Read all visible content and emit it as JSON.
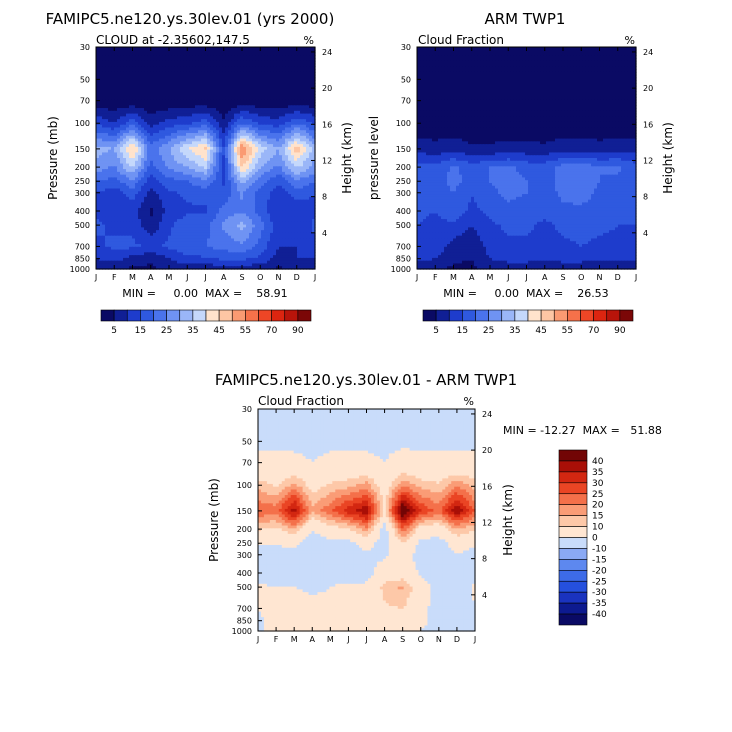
{
  "page": {
    "title_top_left": "FAMIPC5.ne120.ys.30lev.01 (yrs 2000)",
    "title_top_right": "ARM TWP1",
    "title_bottom": "FAMIPC5.ne120.ys.30lev.01 - ARM TWP1"
  },
  "palette": {
    "positive_levels": [
      5,
      10,
      15,
      20,
      25,
      30,
      35,
      40,
      45,
      50,
      55,
      60,
      70,
      80,
      90,
      100
    ],
    "positive_colors": [
      "#0a0a64",
      "#101f95",
      "#1e3ccc",
      "#2f59df",
      "#4a73ec",
      "#6f93f3",
      "#9ab6f8",
      "#c5d8fb",
      "#ffe3cc",
      "#fdc6a4",
      "#fa9a72",
      "#f6714a",
      "#ee4626",
      "#dc2510",
      "#b8140a",
      "#7b0707"
    ],
    "positive_bar_labels": [
      "5",
      "15",
      "25",
      "35",
      "45",
      "55",
      "70",
      "90"
    ],
    "diff_levels": [
      -40,
      -35,
      -30,
      -25,
      -20,
      -15,
      -10,
      0,
      10,
      15,
      20,
      25,
      30,
      35,
      40
    ],
    "diff_colors": [
      "#0a0a64",
      "#0d1a8f",
      "#1a33bf",
      "#2550de",
      "#3d6be8",
      "#5d88ef",
      "#8aa9f4",
      "#c9dcfa",
      "#ffe6d2",
      "#fdc8a8",
      "#fa9c76",
      "#f4704a",
      "#ea4524",
      "#d32711",
      "#a90f07",
      "#720505"
    ],
    "diff_bar_labels": [
      "40",
      "35",
      "30",
      "25",
      "20",
      "15",
      "10",
      "0",
      "-10",
      "-15",
      "-20",
      "-25",
      "-30",
      "-35",
      "-40"
    ]
  },
  "chart_data": [
    {
      "id": "model",
      "type": "contour",
      "title": "FAMIPC5.ne120.ys.30lev.01 (yrs 2000)",
      "subtitle_left": "CLOUD at -2.35602,147.5",
      "subtitle_right": "%",
      "ylabel": "Pressure (mb)",
      "y2label": "Height (km)",
      "xticks": [
        "J",
        "F",
        "M",
        "A",
        "M",
        "J",
        "J",
        "A",
        "S",
        "O",
        "N",
        "D",
        "J"
      ],
      "yticks": [
        "30",
        "50",
        "70",
        "100",
        "150",
        "200",
        "250",
        "300",
        "400",
        "500",
        "700",
        "850",
        "1000"
      ],
      "y2ticks": [
        "24",
        "20",
        "16",
        "12",
        "8",
        "4"
      ],
      "min_max_text": "MIN =     0.00  MAX =    58.91",
      "min": 0.0,
      "max": 58.91,
      "levels_mb": [
        30,
        50,
        70,
        100,
        150,
        200,
        250,
        300,
        400,
        500,
        700,
        850,
        1000
      ],
      "months": [
        "J",
        "F",
        "M",
        "A",
        "M",
        "J",
        "J",
        "A",
        "S",
        "O",
        "N",
        "D",
        "J"
      ],
      "values": [
        [
          0,
          0,
          0,
          0,
          0,
          0,
          0,
          0,
          0,
          0,
          0,
          0,
          0
        ],
        [
          0,
          0,
          0,
          0,
          0,
          0,
          0,
          0,
          0,
          0,
          0,
          0,
          0
        ],
        [
          1,
          1,
          1,
          0,
          1,
          1,
          1,
          0,
          2,
          1,
          1,
          1,
          1
        ],
        [
          14,
          10,
          18,
          8,
          12,
          14,
          18,
          6,
          20,
          14,
          12,
          20,
          14
        ],
        [
          32,
          30,
          47,
          22,
          30,
          40,
          46,
          15,
          56,
          38,
          30,
          48,
          32
        ],
        [
          28,
          24,
          36,
          18,
          26,
          30,
          36,
          14,
          46,
          30,
          24,
          36,
          28
        ],
        [
          20,
          18,
          24,
          12,
          18,
          20,
          24,
          14,
          32,
          22,
          16,
          24,
          20
        ],
        [
          15,
          12,
          18,
          8,
          14,
          16,
          18,
          16,
          26,
          18,
          12,
          18,
          15
        ],
        [
          14,
          10,
          12,
          4,
          12,
          14,
          14,
          22,
          24,
          18,
          10,
          10,
          14
        ],
        [
          16,
          14,
          14,
          6,
          14,
          18,
          18,
          26,
          32,
          22,
          12,
          12,
          16
        ],
        [
          14,
          16,
          16,
          14,
          16,
          18,
          20,
          22,
          24,
          18,
          10,
          10,
          14
        ],
        [
          10,
          12,
          8,
          6,
          10,
          14,
          14,
          16,
          16,
          14,
          8,
          10,
          10
        ],
        [
          6,
          6,
          4,
          4,
          6,
          6,
          6,
          8,
          8,
          6,
          4,
          6,
          6
        ]
      ]
    },
    {
      "id": "obs",
      "type": "contour",
      "title": "ARM TWP1",
      "subtitle_left": "Cloud Fraction",
      "subtitle_right": "%",
      "ylabel": "pressure level",
      "y2label": "Height (km)",
      "xticks": [
        "J",
        "F",
        "M",
        "A",
        "M",
        "J",
        "J",
        "A",
        "S",
        "O",
        "N",
        "D",
        "J"
      ],
      "yticks": [
        "30",
        "50",
        "70",
        "100",
        "150",
        "200",
        "250",
        "300",
        "400",
        "500",
        "700",
        "850",
        "1000"
      ],
      "y2ticks": [
        "24",
        "20",
        "16",
        "12",
        "8",
        "4"
      ],
      "min_max_text": "MIN =     0.00  MAX =    26.53",
      "min": 0.0,
      "max": 26.53,
      "levels_mb": [
        30,
        50,
        70,
        100,
        150,
        200,
        250,
        300,
        400,
        500,
        700,
        850,
        1000
      ],
      "months": [
        "J",
        "F",
        "M",
        "A",
        "M",
        "J",
        "J",
        "A",
        "S",
        "O",
        "N",
        "D",
        "J"
      ],
      "values": [
        [
          0,
          0,
          0,
          0,
          0,
          0,
          0,
          0,
          0,
          0,
          0,
          0,
          0
        ],
        [
          0,
          0,
          0,
          0,
          0,
          0,
          0,
          0,
          0,
          0,
          0,
          0,
          0
        ],
        [
          0,
          0,
          0,
          0,
          0,
          0,
          0,
          0,
          0,
          0,
          0,
          0,
          0
        ],
        [
          1,
          1,
          1,
          1,
          1,
          1,
          1,
          1,
          1,
          1,
          1,
          1,
          1
        ],
        [
          8,
          7,
          8,
          6,
          6,
          7,
          7,
          6,
          8,
          8,
          7,
          8,
          8
        ],
        [
          17,
          16,
          21,
          17,
          20,
          21,
          18,
          18,
          22,
          24,
          20,
          21,
          17
        ],
        [
          19,
          17,
          22,
          18,
          20,
          22,
          20,
          18,
          22,
          24,
          20,
          19,
          19
        ],
        [
          18,
          16,
          20,
          15,
          19,
          21,
          20,
          18,
          21,
          22,
          19,
          18,
          18
        ],
        [
          16,
          15,
          18,
          14,
          16,
          19,
          18,
          16,
          19,
          19,
          18,
          16,
          16
        ],
        [
          15,
          14,
          14,
          10,
          14,
          16,
          16,
          14,
          16,
          17,
          16,
          15,
          15
        ],
        [
          14,
          13,
          8,
          6,
          12,
          14,
          14,
          13,
          14,
          15,
          14,
          14,
          14
        ],
        [
          11,
          10,
          6,
          5,
          10,
          12,
          12,
          11,
          12,
          12,
          11,
          11,
          11
        ],
        [
          6,
          6,
          4,
          4,
          6,
          6,
          6,
          6,
          6,
          6,
          6,
          6,
          6
        ]
      ]
    },
    {
      "id": "diff",
      "type": "contour",
      "title": "FAMIPC5.ne120.ys.30lev.01 - ARM TWP1",
      "subtitle_left": "Cloud Fraction",
      "subtitle_right": "%",
      "ylabel": "Pressure (mb)",
      "y2label": "Height (km)",
      "xticks": [
        "J",
        "F",
        "M",
        "A",
        "M",
        "J",
        "J",
        "A",
        "S",
        "O",
        "N",
        "D",
        "J"
      ],
      "yticks": [
        "30",
        "50",
        "70",
        "100",
        "150",
        "200",
        "250",
        "300",
        "400",
        "500",
        "700",
        "850",
        "1000"
      ],
      "y2ticks": [
        "24",
        "20",
        "16",
        "12",
        "8",
        "4"
      ],
      "min_max_text": "MIN = -12.27  MAX =   51.88",
      "min": -12.27,
      "max": 51.88,
      "levels_mb": [
        30,
        50,
        70,
        100,
        150,
        200,
        250,
        300,
        400,
        500,
        700,
        850,
        1000
      ],
      "months": [
        "J",
        "F",
        "M",
        "A",
        "M",
        "J",
        "J",
        "A",
        "S",
        "O",
        "N",
        "D",
        "J"
      ],
      "values": [
        [
          -1,
          -1,
          -1,
          -1,
          -1,
          -1,
          -1,
          -1,
          -1,
          -1,
          -1,
          -1,
          -1
        ],
        [
          -1,
          -1,
          -1,
          -1,
          -1,
          -1,
          -1,
          -1,
          -1,
          -1,
          -1,
          -1,
          -1
        ],
        [
          1,
          1,
          1,
          0,
          1,
          1,
          1,
          0,
          2,
          1,
          1,
          1,
          1
        ],
        [
          13,
          9,
          17,
          7,
          11,
          13,
          17,
          5,
          19,
          13,
          11,
          19,
          13
        ],
        [
          24,
          23,
          39,
          16,
          24,
          33,
          39,
          9,
          48,
          30,
          23,
          40,
          24
        ],
        [
          11,
          8,
          15,
          1,
          6,
          9,
          18,
          -4,
          24,
          6,
          4,
          15,
          11
        ],
        [
          1,
          1,
          2,
          -6,
          -2,
          -2,
          4,
          -4,
          10,
          -2,
          -4,
          5,
          1
        ],
        [
          -3,
          -4,
          -2,
          -7,
          -5,
          -5,
          -2,
          -2,
          5,
          -4,
          -7,
          0,
          -3
        ],
        [
          -2,
          -5,
          -6,
          -10,
          -4,
          -5,
          -4,
          6,
          5,
          -1,
          -8,
          -6,
          -2
        ],
        [
          1,
          0,
          0,
          -4,
          0,
          2,
          2,
          12,
          16,
          5,
          -4,
          -3,
          1
        ],
        [
          0,
          3,
          8,
          8,
          4,
          4,
          6,
          9,
          10,
          3,
          -4,
          -4,
          0
        ],
        [
          -1,
          2,
          2,
          1,
          0,
          2,
          2,
          5,
          4,
          2,
          -3,
          -1,
          -1
        ],
        [
          0,
          0,
          0,
          0,
          0,
          0,
          0,
          2,
          2,
          0,
          -2,
          0,
          0
        ]
      ]
    }
  ]
}
